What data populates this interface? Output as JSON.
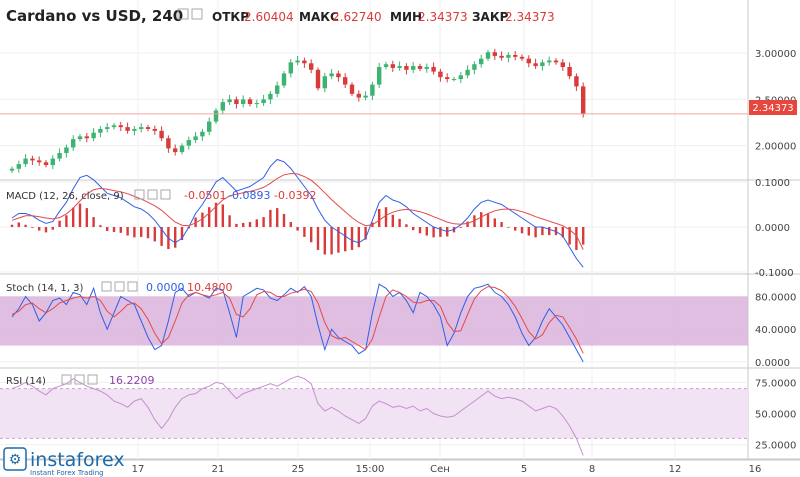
{
  "header": {
    "symbol": "Cardano vs USD, 240",
    "open_label": "ОТКР",
    "open_value": "2.60404",
    "high_label": "МАКС",
    "high_value": "2.62740",
    "low_label": "МИН",
    "low_value": "2.34373",
    "close_label": "ЗАКР",
    "close_value": "2.34373"
  },
  "macd": {
    "label": "MACD (12, 26, close, 9)",
    "v1": "-0.0501",
    "v2": "-0.0893",
    "v3": "-0.0392"
  },
  "stoch": {
    "label": "Stoch (14, 1, 3)",
    "v1": "0.0000",
    "v2": "10.4800"
  },
  "rsi": {
    "label": "RSI (14)",
    "v1": "16.2209"
  },
  "price_tag": "2.34373",
  "logo": {
    "name": "instaforex",
    "tagline": "Instant Forex Trading"
  },
  "colors": {
    "up": "#3cb371",
    "down": "#d93a3a",
    "blue": "#2f5fe6",
    "red": "#e34a4a",
    "purple": "#8e44ad",
    "band": "#d9b3dc",
    "rsi_band": "#f1e3f3",
    "tag": "#e8453c"
  },
  "chart_data": [
    {
      "type": "candlestick",
      "title": "Cardano vs USD, 240",
      "ylim": [
        1.65,
        3.25
      ],
      "y_ticks": [
        "3.00000",
        "2.50000",
        "2.00000"
      ],
      "y_tick_values": [
        3.0,
        2.5,
        2.0
      ],
      "x_ticks": [
        "17",
        "21",
        "25",
        "15:00",
        "Сен",
        "5",
        "8",
        "12",
        "16"
      ],
      "last_price": 2.34373,
      "series": [
        {
          "name": "Cardano vs USD",
          "values": [
            1.75,
            1.8,
            1.86,
            1.84,
            1.82,
            1.79,
            1.86,
            1.92,
            1.98,
            2.07,
            2.1,
            2.08,
            2.14,
            2.18,
            2.2,
            2.22,
            2.2,
            2.16,
            2.18,
            2.2,
            2.18,
            2.16,
            2.08,
            1.97,
            1.93,
            2.0,
            2.06,
            2.1,
            2.15,
            2.26,
            2.38,
            2.47,
            2.5,
            2.45,
            2.5,
            2.45,
            2.46,
            2.5,
            2.56,
            2.65,
            2.78,
            2.9,
            2.92,
            2.89,
            2.82,
            2.62,
            2.75,
            2.78,
            2.74,
            2.66,
            2.56,
            2.52,
            2.54,
            2.66,
            2.85,
            2.88,
            2.84,
            2.86,
            2.82,
            2.86,
            2.83,
            2.85,
            2.8,
            2.74,
            2.72,
            2.72,
            2.76,
            2.82,
            2.88,
            2.94,
            3.01,
            2.97,
            2.95,
            2.98,
            2.96,
            2.94,
            2.89,
            2.86,
            2.9,
            2.92,
            2.9,
            2.85,
            2.75,
            2.64,
            2.34
          ]
        }
      ]
    },
    {
      "type": "line",
      "title": "MACD (12, 26, close, 9)",
      "ylim": [
        -0.1,
        0.1
      ],
      "y_ticks": [
        "0.1000",
        "0.0000",
        "-0.1000"
      ],
      "y_tick_values": [
        0.1,
        0.0,
        -0.1
      ],
      "series": [
        {
          "name": "MACD",
          "values": [
            0.02,
            0.03,
            0.03,
            0.025,
            0.015,
            0.008,
            0.012,
            0.035,
            0.055,
            0.085,
            0.11,
            0.115,
            0.105,
            0.09,
            0.075,
            0.07,
            0.065,
            0.055,
            0.045,
            0.04,
            0.03,
            0.015,
            -0.005,
            -0.025,
            -0.035,
            -0.025,
            0.0,
            0.03,
            0.05,
            0.075,
            0.1,
            0.11,
            0.095,
            0.08,
            0.085,
            0.09,
            0.1,
            0.11,
            0.135,
            0.15,
            0.145,
            0.13,
            0.11,
            0.09,
            0.07,
            0.04,
            0.015,
            0.0,
            -0.01,
            -0.02,
            -0.03,
            -0.035,
            -0.025,
            0.015,
            0.055,
            0.07,
            0.06,
            0.055,
            0.045,
            0.03,
            0.02,
            0.01,
            0.0,
            -0.005,
            -0.01,
            -0.005,
            0.005,
            0.02,
            0.04,
            0.055,
            0.06,
            0.055,
            0.05,
            0.04,
            0.03,
            0.02,
            0.01,
            0.0,
            0.0,
            -0.005,
            -0.01,
            -0.02,
            -0.045,
            -0.07,
            -0.0893
          ]
        },
        {
          "name": "Signal",
          "values": [
            0.015,
            0.02,
            0.025,
            0.025,
            0.023,
            0.02,
            0.018,
            0.021,
            0.029,
            0.042,
            0.058,
            0.073,
            0.083,
            0.086,
            0.084,
            0.081,
            0.078,
            0.074,
            0.068,
            0.062,
            0.055,
            0.047,
            0.037,
            0.024,
            0.011,
            0.004,
            0.003,
            0.009,
            0.018,
            0.031,
            0.046,
            0.06,
            0.069,
            0.073,
            0.076,
            0.079,
            0.083,
            0.088,
            0.097,
            0.108,
            0.116,
            0.119,
            0.118,
            0.112,
            0.104,
            0.091,
            0.076,
            0.061,
            0.047,
            0.034,
            0.021,
            0.01,
            0.003,
            0.005,
            0.015,
            0.026,
            0.033,
            0.037,
            0.039,
            0.037,
            0.034,
            0.029,
            0.023,
            0.017,
            0.011,
            0.007,
            0.006,
            0.008,
            0.014,
            0.022,
            0.03,
            0.036,
            0.039,
            0.04,
            0.038,
            0.034,
            0.029,
            0.023,
            0.018,
            0.013,
            0.008,
            0.003,
            -0.006,
            -0.019,
            -0.0501
          ]
        },
        {
          "name": "Histogram",
          "values": [
            0.005,
            0.01,
            0.005,
            0.0,
            -0.008,
            -0.012,
            -0.006,
            0.014,
            0.026,
            0.043,
            0.052,
            0.042,
            0.022,
            0.004,
            -0.009,
            -0.011,
            -0.013,
            -0.019,
            -0.023,
            -0.022,
            -0.025,
            -0.032,
            -0.042,
            -0.049,
            -0.046,
            -0.029,
            -0.003,
            0.021,
            0.032,
            0.044,
            0.054,
            0.05,
            0.026,
            0.007,
            0.009,
            0.011,
            0.017,
            0.022,
            0.038,
            0.042,
            0.029,
            0.011,
            -0.008,
            -0.022,
            -0.034,
            -0.051,
            -0.061,
            -0.061,
            -0.057,
            -0.054,
            -0.051,
            -0.045,
            -0.028,
            0.01,
            0.04,
            0.044,
            0.027,
            0.018,
            0.006,
            -0.007,
            -0.014,
            -0.019,
            -0.023,
            -0.022,
            -0.021,
            -0.012,
            -0.001,
            0.012,
            0.026,
            0.033,
            0.03,
            0.019,
            0.011,
            0.0,
            -0.008,
            -0.014,
            -0.019,
            -0.023,
            -0.018,
            -0.018,
            -0.018,
            -0.023,
            -0.039,
            -0.051,
            -0.0392
          ]
        }
      ]
    },
    {
      "type": "line",
      "title": "Stoch (14, 1, 3)",
      "ylim": [
        -5,
        105
      ],
      "y_ticks": [
        "80.0000",
        "40.0000",
        "0.0000"
      ],
      "y_tick_values": [
        80,
        40,
        0
      ],
      "band": [
        20,
        80
      ],
      "series": [
        {
          "name": "%K",
          "values": [
            55,
            65,
            80,
            70,
            50,
            60,
            75,
            78,
            70,
            85,
            82,
            70,
            90,
            60,
            40,
            60,
            80,
            75,
            70,
            50,
            30,
            15,
            20,
            50,
            85,
            90,
            80,
            85,
            82,
            78,
            90,
            88,
            60,
            30,
            80,
            85,
            90,
            88,
            78,
            75,
            82,
            90,
            85,
            92,
            80,
            45,
            15,
            40,
            30,
            25,
            20,
            10,
            15,
            60,
            95,
            90,
            80,
            85,
            75,
            60,
            85,
            80,
            70,
            55,
            20,
            35,
            60,
            80,
            90,
            92,
            95,
            85,
            80,
            70,
            55,
            35,
            20,
            30,
            50,
            65,
            55,
            45,
            30,
            15,
            0
          ]
        },
        {
          "name": "%D",
          "values": [
            58,
            62,
            70,
            72,
            65,
            60,
            65,
            72,
            75,
            78,
            80,
            78,
            80,
            75,
            62,
            55,
            62,
            70,
            72,
            65,
            52,
            35,
            22,
            30,
            50,
            72,
            82,
            85,
            82,
            80,
            82,
            85,
            78,
            58,
            55,
            65,
            82,
            86,
            85,
            80,
            80,
            84,
            86,
            89,
            86,
            72,
            48,
            32,
            28,
            30,
            25,
            20,
            15,
            28,
            55,
            80,
            88,
            85,
            80,
            73,
            72,
            75,
            75,
            68,
            48,
            37,
            38,
            58,
            77,
            87,
            92,
            91,
            87,
            79,
            68,
            53,
            37,
            28,
            33,
            48,
            57,
            55,
            42,
            28,
            10.48
          ]
        }
      ]
    },
    {
      "type": "line",
      "title": "RSI (14)",
      "ylim": [
        15,
        85
      ],
      "y_ticks": [
        "75.0000",
        "50.0000",
        "25.0000"
      ],
      "y_tick_values": [
        75,
        50,
        25
      ],
      "band": [
        30,
        70
      ],
      "series": [
        {
          "name": "RSI",
          "values": [
            70,
            72,
            75,
            72,
            68,
            65,
            70,
            72,
            74,
            78,
            75,
            72,
            70,
            68,
            65,
            60,
            58,
            55,
            60,
            62,
            55,
            45,
            38,
            45,
            55,
            62,
            65,
            66,
            70,
            72,
            75,
            74,
            68,
            62,
            66,
            68,
            70,
            72,
            74,
            72,
            75,
            78,
            80,
            78,
            74,
            58,
            52,
            55,
            52,
            48,
            45,
            42,
            46,
            56,
            60,
            58,
            55,
            56,
            54,
            56,
            52,
            54,
            50,
            48,
            47,
            48,
            52,
            56,
            60,
            64,
            68,
            64,
            62,
            63,
            62,
            60,
            56,
            52,
            54,
            56,
            54,
            48,
            40,
            30,
            16.22
          ]
        }
      ]
    }
  ]
}
